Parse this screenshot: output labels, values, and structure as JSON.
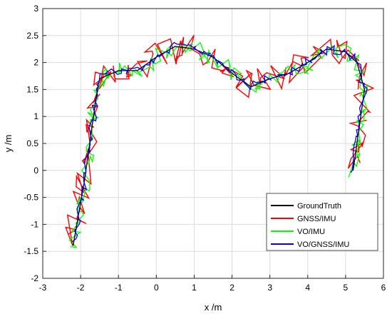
{
  "chart_data": {
    "type": "line",
    "title": "",
    "xlabel": "x /m",
    "ylabel": "y /m",
    "xlim": [
      -3,
      6
    ],
    "ylim": [
      -2,
      3
    ],
    "grid": true,
    "legend_position": "bottom-right",
    "x_ticks": [
      "-3",
      "-2",
      "-1",
      "0",
      "1",
      "2",
      "3",
      "4",
      "5",
      "6"
    ],
    "y_ticks": [
      "-2",
      "-1.5",
      "-1",
      "-0.5",
      "0",
      "0.5",
      "1",
      "1.5",
      "2",
      "2.5",
      "3"
    ],
    "ground_truth_path": {
      "x": [
        -2.2,
        -2.1,
        -2.0,
        -1.9,
        -1.8,
        -1.7,
        -1.6,
        -1.5,
        -1.0,
        -0.5,
        0.0,
        0.5,
        1.0,
        1.5,
        2.0,
        2.5,
        3.0,
        3.5,
        4.0,
        4.5,
        5.0,
        5.3,
        5.5,
        5.4,
        5.3,
        5.2
      ],
      "y": [
        -1.4,
        -1.0,
        -0.6,
        -0.2,
        0.3,
        0.8,
        1.3,
        1.7,
        1.85,
        1.85,
        2.1,
        2.3,
        2.25,
        2.1,
        1.8,
        1.55,
        1.7,
        1.8,
        2.0,
        2.25,
        2.2,
        2.0,
        1.5,
        1.0,
        0.5,
        0.0
      ]
    },
    "series": [
      {
        "name": "GroundTruth",
        "color": "#000000",
        "noise": 0.0,
        "seed": 1
      },
      {
        "name": "GNSS/IMU",
        "color": "#ff0000",
        "noise": 0.26,
        "seed": 7
      },
      {
        "name": "VO/IMU",
        "color": "#00ff00",
        "noise": 0.15,
        "seed": 13
      },
      {
        "name": "VO/GNSS/IMU",
        "color": "#0000ff",
        "noise": 0.08,
        "seed": 29
      }
    ]
  }
}
